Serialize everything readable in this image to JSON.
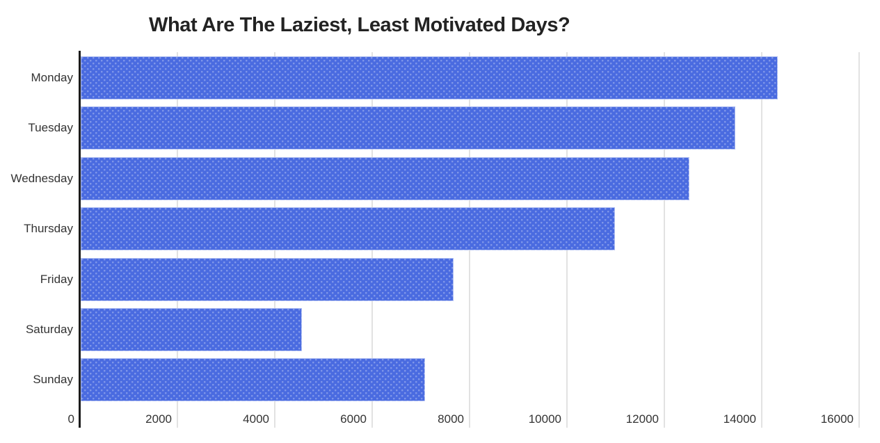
{
  "chart_data": {
    "type": "bar",
    "orientation": "horizontal",
    "title": "What Are The Laziest, Least Motivated Days?",
    "categories": [
      "Monday",
      "Tuesday",
      "Wednesday",
      "Thursday",
      "Friday",
      "Saturday",
      "Sunday"
    ],
    "values": [
      14330,
      13450,
      12510,
      10990,
      7670,
      4550,
      7080
    ],
    "xlabel": "",
    "ylabel": "",
    "xlim": [
      0,
      16000
    ],
    "x_ticks": [
      0,
      2000,
      4000,
      6000,
      8000,
      10000,
      12000,
      14000,
      16000
    ],
    "grid": "vertical-only",
    "legend": "none",
    "colors": {
      "bar": "#4a6be0",
      "bar_pattern_dots": "rgba(255,255,255,0.30)",
      "axis_line": "#1c1c1c",
      "gridline": "#e2e2e2",
      "tick_label": "#333333",
      "title": "#232323",
      "background": "#ffffff"
    }
  }
}
